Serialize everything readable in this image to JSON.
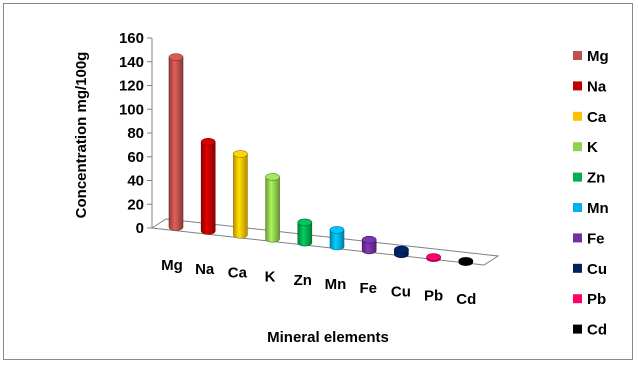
{
  "chart_data": {
    "type": "bar",
    "style": "3d-cylinder",
    "title": "",
    "xlabel": "Mineral elements",
    "ylabel": "Concentration mg/100g",
    "ylim": [
      0,
      160
    ],
    "yticks": [
      0,
      20,
      40,
      60,
      80,
      100,
      120,
      140,
      160
    ],
    "categories": [
      "Mg",
      "Na",
      "Ca",
      "K",
      "Zn",
      "Mn",
      "Fe",
      "Cu",
      "Pb",
      "Cd"
    ],
    "series": [
      {
        "name": "Mg",
        "values": [
          143,
          0,
          0,
          0,
          0,
          0,
          0,
          0,
          0,
          0
        ]
      },
      {
        "name": "Na",
        "values": [
          0,
          75,
          0,
          0,
          0,
          0,
          0,
          0,
          0,
          0
        ]
      },
      {
        "name": "Ca",
        "values": [
          0,
          0,
          68,
          0,
          0,
          0,
          0,
          0,
          0,
          0
        ]
      },
      {
        "name": "K",
        "values": [
          0,
          0,
          0,
          52,
          0,
          0,
          0,
          0,
          0,
          0
        ]
      },
      {
        "name": "Zn",
        "values": [
          0,
          0,
          0,
          0,
          17,
          0,
          0,
          0,
          0,
          0
        ]
      },
      {
        "name": "Mn",
        "values": [
          0,
          0,
          0,
          0,
          0,
          14,
          0,
          0,
          0,
          0
        ]
      },
      {
        "name": "Fe",
        "values": [
          0,
          0,
          0,
          0,
          0,
          0,
          9,
          0,
          0,
          0
        ]
      },
      {
        "name": "Cu",
        "values": [
          0,
          0,
          0,
          0,
          0,
          0,
          0,
          4,
          0,
          0
        ]
      },
      {
        "name": "Pb",
        "values": [
          0,
          0,
          0,
          0,
          0,
          0,
          0,
          0,
          1,
          0
        ]
      },
      {
        "name": "Cd",
        "values": [
          0,
          0,
          0,
          0,
          0,
          0,
          0,
          0,
          0,
          1
        ]
      }
    ],
    "colors": [
      "#c0504d",
      "#c00000",
      "#ffc000",
      "#92d050",
      "#00b050",
      "#00b0f0",
      "#7030a0",
      "#002060",
      "#ff0066",
      "#000000"
    ],
    "legend": "right",
    "grid": false
  }
}
